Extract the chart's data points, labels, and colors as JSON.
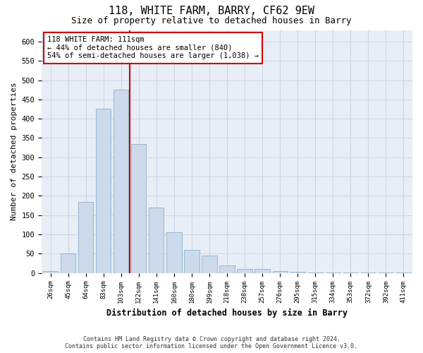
{
  "title": "118, WHITE FARM, BARRY, CF62 9EW",
  "subtitle": "Size of property relative to detached houses in Barry",
  "xlabel": "Distribution of detached houses by size in Barry",
  "ylabel": "Number of detached properties",
  "footer_line1": "Contains HM Land Registry data © Crown copyright and database right 2024.",
  "footer_line2": "Contains public sector information licensed under the Open Government Licence v3.0.",
  "bar_color": "#ccdaeb",
  "bar_edge_color": "#8aafc8",
  "categories": [
    "26sqm",
    "45sqm",
    "64sqm",
    "83sqm",
    "103sqm",
    "122sqm",
    "141sqm",
    "160sqm",
    "180sqm",
    "199sqm",
    "218sqm",
    "238sqm",
    "257sqm",
    "276sqm",
    "295sqm",
    "315sqm",
    "334sqm",
    "353sqm",
    "372sqm",
    "392sqm",
    "411sqm"
  ],
  "values": [
    5,
    50,
    185,
    425,
    475,
    335,
    170,
    105,
    60,
    45,
    20,
    10,
    10,
    5,
    3,
    2,
    1,
    1,
    1,
    1,
    2
  ],
  "ylim": [
    0,
    630
  ],
  "yticks": [
    0,
    50,
    100,
    150,
    200,
    250,
    300,
    350,
    400,
    450,
    500,
    550,
    600
  ],
  "vline_position": 4.5,
  "vline_color": "#cc0000",
  "annotation_text": "118 WHITE FARM: 111sqm\n← 44% of detached houses are smaller (840)\n54% of semi-detached houses are larger (1,038) →",
  "annotation_box_color": "#cc0000",
  "grid_color": "#ccd6e8",
  "background_color": "#e8eef6"
}
